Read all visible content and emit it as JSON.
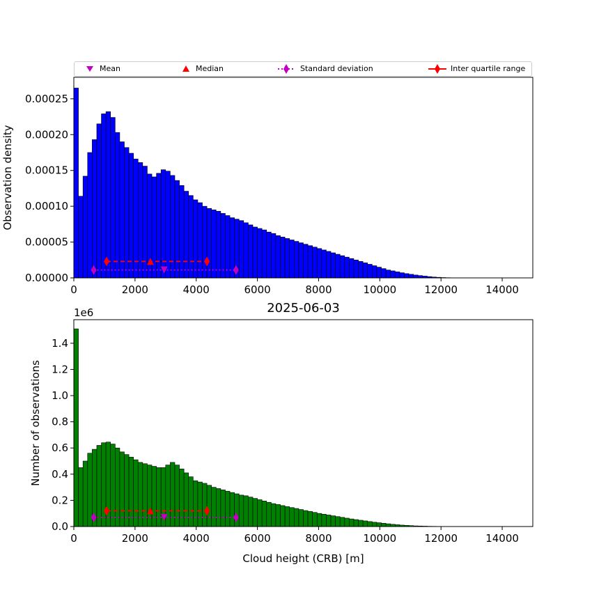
{
  "chart_data": [
    {
      "type": "bar",
      "color": "#0000ff",
      "xlabel": "",
      "ylabel": "Observation density",
      "xlim": [
        0,
        15000
      ],
      "ylim": [
        0,
        0.00028
      ],
      "xticks": [
        "0",
        "2000",
        "4000",
        "6000",
        "8000",
        "10000",
        "12000",
        "14000"
      ],
      "yticks": [
        "0.00000",
        "0.00005",
        "0.00010",
        "0.00015",
        "0.00020",
        "0.00025"
      ],
      "bin_width": 150,
      "values": [
        0.000265,
        0.000114,
        0.000142,
        0.000175,
        0.000193,
        0.000215,
        0.000229,
        0.000232,
        0.000224,
        0.000203,
        0.00019,
        0.000182,
        0.000174,
        0.000166,
        0.000161,
        0.000156,
        0.000145,
        0.000141,
        0.000146,
        0.000151,
        0.000149,
        0.000143,
        0.000136,
        0.000129,
        0.000121,
        0.000115,
        0.000109,
        0.000105,
        0.0001,
        9.7e-05,
        9.5e-05,
        9.3e-05,
        9e-05,
        8.7e-05,
        8.4e-05,
        8.2e-05,
        8e-05,
        7.7e-05,
        7.4e-05,
        7.1e-05,
        6.9e-05,
        6.7e-05,
        6.4e-05,
        6.2e-05,
        5.9e-05,
        5.7e-05,
        5.5e-05,
        5.3e-05,
        5.1e-05,
        4.9e-05,
        4.7e-05,
        4.5e-05,
        4.3e-05,
        4.1e-05,
        3.9e-05,
        3.7e-05,
        3.5e-05,
        3.3e-05,
        3.1e-05,
        2.9e-05,
        2.7e-05,
        2.5e-05,
        2.3e-05,
        2.1e-05,
        1.9e-05,
        1.7e-05,
        1.5e-05,
        1.3e-05,
        1.1e-05,
        9.8e-06,
        8.5e-06,
        7.2e-06,
        6e-06,
        5e-06,
        4e-06,
        3.2e-06,
        2.5e-06,
        1.8e-06,
        1.2e-06,
        8e-07,
        5e-07,
        3e-07,
        2e-07,
        1e-07,
        5e-08
      ],
      "stats": {
        "mean": {
          "x": 2950,
          "y": 1.1e-05
        },
        "median": {
          "x": 2500,
          "y": 2.3e-05
        },
        "std_range": {
          "x": [
            650,
            5300
          ],
          "y": 1.1e-05
        },
        "iqr": {
          "x": [
            1070,
            4350
          ],
          "y": 2.3e-05
        }
      }
    },
    {
      "type": "bar",
      "color": "#008000",
      "title": "2025-06-03",
      "xlabel": "Cloud height (CRB) [m]",
      "ylabel": "Number of observations",
      "offset_label": "1e6",
      "xlim": [
        0,
        15000
      ],
      "ylim": [
        0,
        1.58
      ],
      "xticks": [
        "0",
        "2000",
        "4000",
        "6000",
        "8000",
        "10000",
        "12000",
        "14000"
      ],
      "yticks": [
        "0.0",
        "0.2",
        "0.4",
        "0.6",
        "0.8",
        "1.0",
        "1.2",
        "1.4"
      ],
      "bin_width": 150,
      "values": [
        1.51,
        0.45,
        0.5,
        0.56,
        0.59,
        0.62,
        0.64,
        0.645,
        0.63,
        0.6,
        0.57,
        0.55,
        0.53,
        0.51,
        0.49,
        0.48,
        0.47,
        0.46,
        0.45,
        0.45,
        0.47,
        0.49,
        0.47,
        0.44,
        0.41,
        0.38,
        0.35,
        0.34,
        0.33,
        0.315,
        0.3,
        0.29,
        0.28,
        0.27,
        0.26,
        0.25,
        0.24,
        0.235,
        0.225,
        0.215,
        0.205,
        0.195,
        0.185,
        0.175,
        0.168,
        0.16,
        0.152,
        0.145,
        0.138,
        0.13,
        0.122,
        0.115,
        0.108,
        0.1,
        0.094,
        0.088,
        0.082,
        0.076,
        0.07,
        0.064,
        0.058,
        0.053,
        0.048,
        0.043,
        0.038,
        0.033,
        0.029,
        0.025,
        0.021,
        0.017,
        0.014,
        0.011,
        0.009,
        0.007,
        0.005,
        0.004,
        0.003,
        0.002,
        0.0015,
        0.001,
        0.0007,
        0.0005,
        0.0003,
        0.0002,
        0.0001
      ],
      "stats": {
        "mean": {
          "x": 2950,
          "y": 0.07
        },
        "median": {
          "x": 2500,
          "y": 0.12
        },
        "std_range": {
          "x": [
            650,
            5300
          ],
          "y": 0.07
        },
        "iqr": {
          "x": [
            1070,
            4350
          ],
          "y": 0.12
        }
      }
    }
  ],
  "legend": {
    "placement": "top",
    "items": [
      {
        "label": "Mean",
        "marker": "triangle-down-icon",
        "color": "#bf00bf"
      },
      {
        "label": "Median",
        "marker": "triangle-up-icon",
        "color": "#ff0000"
      },
      {
        "label": "Standard deviation",
        "marker": "diamond-dotted-line-icon",
        "color": "#bf00bf"
      },
      {
        "label": "Inter quartile range",
        "marker": "diamond-solid-line-icon",
        "color": "#ff0000"
      }
    ]
  }
}
